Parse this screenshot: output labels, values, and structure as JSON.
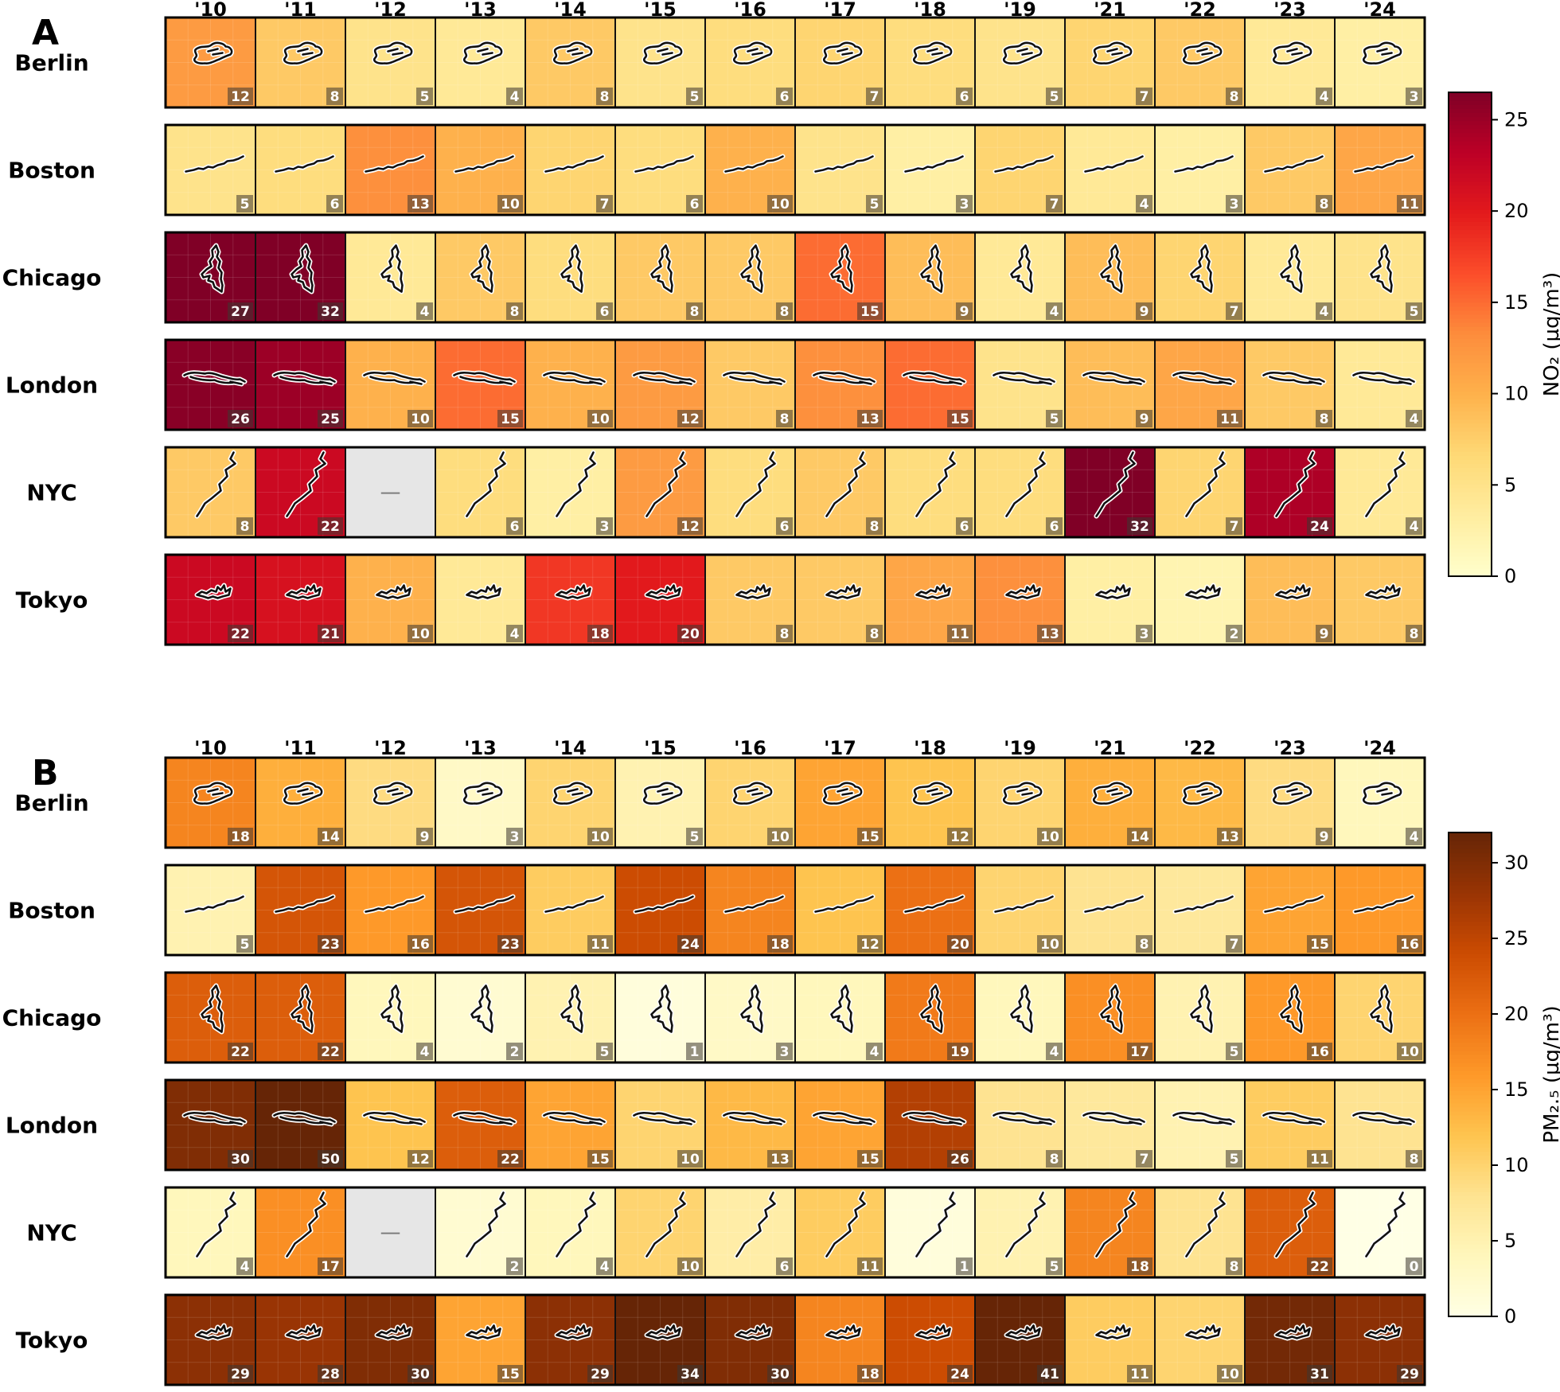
{
  "chart_data": [
    {
      "type": "heatmap",
      "panel": "A",
      "years": [
        "'10",
        "'11",
        "'12",
        "'13",
        "'14",
        "'15",
        "'16",
        "'17",
        "'18",
        "'19",
        "'21",
        "'22",
        "'23",
        "'24"
      ],
      "cities": [
        "Berlin",
        "Boston",
        "Chicago",
        "London",
        "NYC",
        "Tokyo"
      ],
      "values": [
        [
          12,
          8,
          5,
          4,
          8,
          5,
          6,
          7,
          6,
          5,
          7,
          8,
          4,
          3
        ],
        [
          5,
          6,
          13,
          10,
          7,
          6,
          10,
          5,
          3,
          7,
          4,
          3,
          8,
          11
        ],
        [
          27,
          32,
          4,
          8,
          6,
          8,
          8,
          15,
          9,
          4,
          9,
          7,
          4,
          5
        ],
        [
          26,
          25,
          10,
          15,
          10,
          12,
          8,
          13,
          15,
          5,
          9,
          11,
          8,
          4
        ],
        [
          8,
          22,
          null,
          6,
          3,
          12,
          6,
          8,
          6,
          6,
          32,
          7,
          24,
          4
        ],
        [
          22,
          21,
          10,
          4,
          18,
          20,
          8,
          8,
          11,
          13,
          3,
          2,
          9,
          8
        ]
      ],
      "missing_label": "—",
      "colorbar": {
        "label": "NO₂ (µg/m³)",
        "range": [
          0,
          26.5
        ],
        "ticks": [
          "0",
          "5",
          "10",
          "15",
          "20",
          "25"
        ],
        "colormap": "YlOrRd"
      }
    },
    {
      "type": "heatmap",
      "panel": "B",
      "years": [
        "'10",
        "'11",
        "'12",
        "'13",
        "'14",
        "'15",
        "'16",
        "'17",
        "'18",
        "'19",
        "'21",
        "'22",
        "'23",
        "'24"
      ],
      "cities": [
        "Berlin",
        "Boston",
        "Chicago",
        "London",
        "NYC",
        "Tokyo"
      ],
      "values": [
        [
          18,
          14,
          9,
          3,
          10,
          5,
          10,
          15,
          12,
          10,
          14,
          13,
          9,
          4
        ],
        [
          5,
          23,
          16,
          23,
          11,
          24,
          18,
          12,
          20,
          10,
          8,
          7,
          15,
          16
        ],
        [
          22,
          22,
          4,
          2,
          5,
          1,
          3,
          4,
          19,
          4,
          17,
          5,
          16,
          10
        ],
        [
          30,
          50,
          12,
          22,
          15,
          10,
          13,
          15,
          26,
          8,
          7,
          5,
          11,
          8
        ],
        [
          4,
          17,
          null,
          2,
          4,
          10,
          6,
          11,
          1,
          5,
          18,
          8,
          22,
          0
        ],
        [
          29,
          28,
          30,
          15,
          29,
          34,
          30,
          18,
          24,
          41,
          11,
          10,
          31,
          29
        ]
      ],
      "missing_label": "—",
      "colorbar": {
        "label": "PM₂.₅ (µg/m³)",
        "range": [
          0,
          32
        ],
        "ticks": [
          "0",
          "5",
          "10",
          "15",
          "20",
          "25",
          "30"
        ],
        "colormap": "YlOrBr"
      }
    }
  ]
}
